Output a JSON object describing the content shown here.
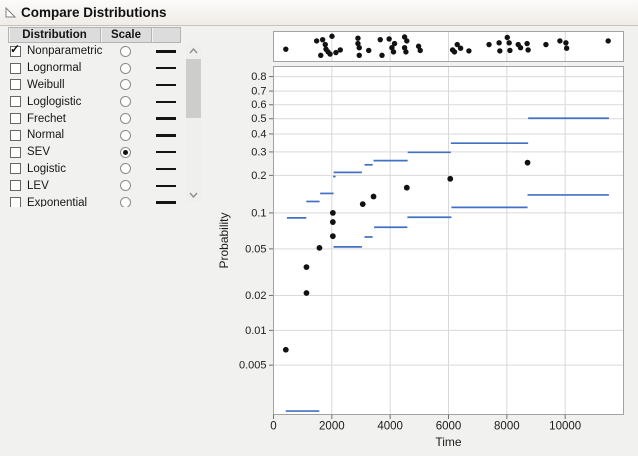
{
  "title": "Compare Distributions",
  "panel": {
    "columns": [
      "Distribution",
      "Scale",
      ""
    ],
    "rows": [
      {
        "label": "Nonparametric",
        "checked": true,
        "scale_selected": false
      },
      {
        "label": "Lognormal",
        "checked": false,
        "scale_selected": false
      },
      {
        "label": "Weibull",
        "checked": false,
        "scale_selected": false
      },
      {
        "label": "Loglogistic",
        "checked": false,
        "scale_selected": false
      },
      {
        "label": "Frechet",
        "checked": false,
        "scale_selected": false
      },
      {
        "label": "Normal",
        "checked": false,
        "scale_selected": false
      },
      {
        "label": "SEV",
        "checked": false,
        "scale_selected": true
      },
      {
        "label": "Logistic",
        "checked": false,
        "scale_selected": false
      },
      {
        "label": "LEV",
        "checked": false,
        "scale_selected": false
      },
      {
        "label": "Exponential",
        "checked": false,
        "scale_selected": false
      }
    ]
  },
  "chart_data": {
    "type": "scatter",
    "title": "",
    "xlabel": "Time",
    "ylabel": "Probability",
    "x_ticks": [
      0,
      2000,
      4000,
      6000,
      8000,
      10000
    ],
    "xlim": [
      0,
      12000
    ],
    "y_scale": "SEV probability scale",
    "y_tick_labels": [
      "0.8",
      "0.7",
      "0.6",
      "0.5",
      "0.4",
      "0.3",
      "0.2",
      "0.1",
      "0.05",
      "0.02",
      "0.01",
      "0.005"
    ],
    "ylim": [
      0.002,
      0.857
    ],
    "grid": true,
    "event_plot_points": [
      [
        422,
        0.61
      ],
      [
        1480,
        0.27
      ],
      [
        1620,
        0.86
      ],
      [
        1685,
        0.22
      ],
      [
        1775,
        0.42
      ],
      [
        1800,
        0.61
      ],
      [
        1870,
        0.72
      ],
      [
        1940,
        0.81
      ],
      [
        2005,
        0.08
      ],
      [
        2140,
        0.75
      ],
      [
        2290,
        0.64
      ],
      [
        2895,
        0.16
      ],
      [
        2895,
        0.38
      ],
      [
        2940,
        0.55
      ],
      [
        2940,
        0.86
      ],
      [
        3265,
        0.66
      ],
      [
        3660,
        0.22
      ],
      [
        3720,
        0.86
      ],
      [
        3965,
        0.19
      ],
      [
        4060,
        0.55
      ],
      [
        4115,
        0.72
      ],
      [
        4150,
        0.38
      ],
      [
        4495,
        0.11
      ],
      [
        4495,
        0.55
      ],
      [
        4540,
        0.72
      ],
      [
        4570,
        0.27
      ],
      [
        4975,
        0.49
      ],
      [
        5030,
        0.66
      ],
      [
        6140,
        0.64
      ],
      [
        6205,
        0.72
      ],
      [
        6300,
        0.42
      ],
      [
        6415,
        0.57
      ],
      [
        6700,
        0.68
      ],
      [
        7390,
        0.42
      ],
      [
        7735,
        0.35
      ],
      [
        7760,
        0.68
      ],
      [
        8015,
        0.13
      ],
      [
        8080,
        0.35
      ],
      [
        8105,
        0.66
      ],
      [
        8390,
        0.42
      ],
      [
        8470,
        0.55
      ],
      [
        8695,
        0.38
      ],
      [
        8730,
        0.64
      ],
      [
        9340,
        0.42
      ],
      [
        9820,
        0.27
      ],
      [
        10025,
        0.35
      ],
      [
        10050,
        0.57
      ],
      [
        11475,
        0.27
      ]
    ],
    "nonparametric_upper_segments": [
      [
        460,
        1125,
        0.091
      ],
      [
        1125,
        1580,
        0.124
      ],
      [
        1600,
        2060,
        0.144
      ],
      [
        2040,
        2130,
        0.196
      ],
      [
        2060,
        3030,
        0.211
      ],
      [
        3120,
        3400,
        0.241
      ],
      [
        3430,
        4600,
        0.259
      ],
      [
        4600,
        6080,
        0.298
      ],
      [
        6080,
        8730,
        0.346
      ],
      [
        8730,
        11500,
        0.503
      ]
    ],
    "nonparametric_lower_segments": [
      [
        420,
        1570,
        0.002
      ],
      [
        2060,
        3030,
        0.052
      ],
      [
        3120,
        3400,
        0.063
      ],
      [
        3450,
        4590,
        0.076
      ],
      [
        4590,
        6100,
        0.092
      ],
      [
        6100,
        8710,
        0.111
      ],
      [
        8710,
        11500,
        0.14
      ]
    ],
    "midpoint_estimates": [
      [
        422,
        0.0068
      ],
      [
        1130,
        0.021
      ],
      [
        1130,
        0.035
      ],
      [
        1575,
        0.051
      ],
      [
        2035,
        0.064
      ],
      [
        2035,
        0.084
      ],
      [
        2035,
        0.1
      ],
      [
        3060,
        0.118
      ],
      [
        3430,
        0.136
      ],
      [
        4570,
        0.16
      ],
      [
        6060,
        0.188
      ],
      [
        8710,
        0.25
      ]
    ],
    "colors": {
      "nonparametric_segment": "#4170c4",
      "data_point": "#121212",
      "grid_line": "#d9d9d9",
      "frame": "#a3a3a3"
    }
  }
}
